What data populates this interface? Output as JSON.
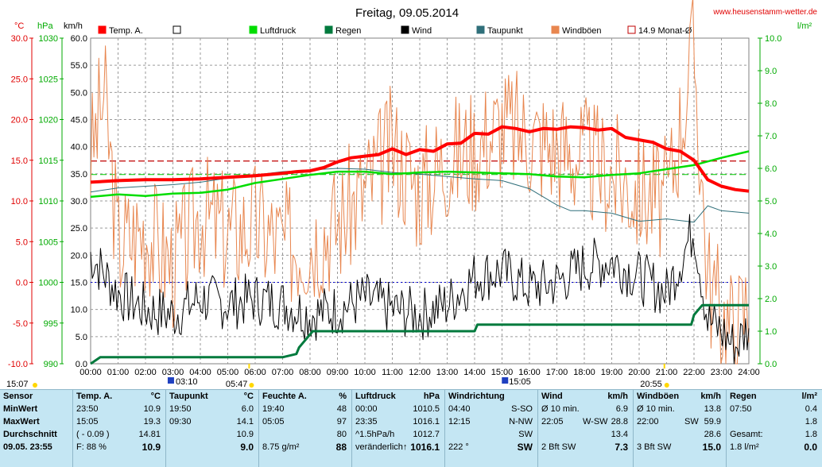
{
  "title": "Freitag, 09.05.2014",
  "site": "www.heusenstamm-wetter.de",
  "axis_units": {
    "temp": "°C",
    "pressure": "hPa",
    "wind": "km/h",
    "rain": "l/m²"
  },
  "colors": {
    "temp": "#ff0000",
    "pressure": "#00dd00",
    "rain": "#007a3d",
    "wind": "#000000",
    "dewpoint": "#2f6f7a",
    "gust": "#e8864f",
    "avg": "#c00000"
  },
  "legend": [
    {
      "label": "Temp. A.",
      "color": "#ff0000",
      "fill": true
    },
    {
      "label": "",
      "color": "#000000",
      "fill": false
    },
    {
      "label": "Luftdruck",
      "color": "#00dd00",
      "fill": true
    },
    {
      "label": "Regen",
      "color": "#007a3d",
      "fill": true
    },
    {
      "label": "Wind",
      "color": "#000000",
      "fill": true
    },
    {
      "label": "Taupunkt",
      "color": "#2f6f7a",
      "fill": true
    },
    {
      "label": "Windböen",
      "color": "#e8864f",
      "fill": true
    },
    {
      "label": "14.9 Monat-Ø",
      "color": "#c00000",
      "fill": false
    }
  ],
  "chart_data": {
    "type": "line",
    "x_ticks": [
      "00:00",
      "01:00",
      "02:00",
      "03:00",
      "04:00",
      "05:00",
      "06:00",
      "07:00",
      "08:00",
      "09:00",
      "10:00",
      "11:00",
      "12:00",
      "13:00",
      "14:00",
      "15:00",
      "16:00",
      "17:00",
      "18:00",
      "19:00",
      "20:00",
      "21:00",
      "22:00",
      "23:00",
      "24:00"
    ],
    "axes": {
      "temp": {
        "ticks": [
          "30.0",
          "25.0",
          "20.0",
          "15.0",
          "10.0",
          "5.0",
          "0.0",
          "-5.0",
          "-10.0"
        ],
        "range": [
          -10,
          30
        ]
      },
      "pressure": {
        "ticks": [
          "1030",
          "1025",
          "1020",
          "1015",
          "1010",
          "1005",
          "1000",
          "995",
          "990"
        ],
        "range": [
          990,
          1030
        ]
      },
      "wind": {
        "ticks": [
          "60.0",
          "55.0",
          "50.0",
          "45.0",
          "40.0",
          "35.0",
          "30.0",
          "25.0",
          "20.0",
          "15.0",
          "10.0",
          "5.0",
          "0.0"
        ],
        "range": [
          0,
          60
        ]
      },
      "rain": {
        "ticks": [
          "10.0",
          "9.0",
          "8.0",
          "7.0",
          "6.0",
          "5.0",
          "4.0",
          "3.0",
          "2.0",
          "1.0",
          "0.0"
        ],
        "range": [
          0,
          10
        ]
      }
    },
    "monthly_avg_temp": 14.9,
    "series": [
      {
        "name": "Temp. A.",
        "axis": "temp",
        "x": [
          0,
          1,
          2,
          3,
          4,
          5,
          6,
          7,
          7.5,
          8,
          8.5,
          9,
          9.5,
          10,
          10.5,
          11,
          11.5,
          12,
          12.5,
          13,
          13.5,
          14,
          14.5,
          15,
          15.5,
          16,
          16.5,
          17,
          17.5,
          18,
          18.5,
          19,
          19.5,
          20,
          20.5,
          21,
          21.5,
          22,
          22.5,
          23,
          23.5,
          24
        ],
        "y": [
          12.3,
          12.5,
          12.6,
          12.6,
          12.7,
          12.9,
          13.1,
          13.4,
          13.6,
          13.7,
          14.1,
          14.8,
          15.3,
          15.5,
          15.7,
          16.4,
          15.7,
          16.3,
          16.1,
          17.0,
          17.1,
          18.3,
          18.2,
          19.1,
          18.9,
          18.5,
          18.9,
          18.8,
          19.1,
          19.0,
          18.7,
          18.9,
          17.8,
          17.5,
          17.2,
          16.4,
          16.1,
          15.0,
          12.6,
          11.8,
          11.4,
          11.2
        ]
      },
      {
        "name": "Luftdruck",
        "axis": "pressure",
        "x": [
          0,
          1,
          2,
          3,
          4,
          5,
          6,
          7,
          8,
          9,
          10,
          11,
          12,
          13,
          14,
          15,
          16,
          17,
          18,
          19,
          20,
          21,
          22,
          23,
          24
        ],
        "y": [
          1010.5,
          1010.8,
          1010.6,
          1010.9,
          1011.0,
          1011.4,
          1012.2,
          1012.7,
          1013.2,
          1013.6,
          1013.6,
          1013.3,
          1013.5,
          1013.6,
          1013.5,
          1013.4,
          1013.3,
          1013.0,
          1012.9,
          1013.2,
          1013.4,
          1013.9,
          1014.4,
          1015.3,
          1016.1
        ]
      },
      {
        "name": "Taupunkt",
        "axis": "temp",
        "x": [
          0,
          1,
          2,
          3,
          4,
          5,
          6,
          7,
          8,
          9,
          10,
          11,
          12,
          13,
          14,
          15,
          16,
          17,
          17.5,
          18,
          19,
          20,
          21,
          22,
          22.5,
          23,
          24
        ],
        "y": [
          11.1,
          11.6,
          11.8,
          12.0,
          12.3,
          12.8,
          13.2,
          13.6,
          13.8,
          14.0,
          13.9,
          13.5,
          13.3,
          13.0,
          12.7,
          12.5,
          11.5,
          9.5,
          8.8,
          8.8,
          8.5,
          7.5,
          7.8,
          7.4,
          9.4,
          8.8,
          8.5
        ]
      },
      {
        "name": "Regen",
        "axis": "rain",
        "x": [
          0,
          0.35,
          1,
          2,
          3,
          4,
          5,
          6,
          7,
          7.5,
          7.6,
          7.8,
          8,
          8.1,
          9,
          10,
          11,
          12,
          13,
          14,
          14.1,
          15,
          16,
          17,
          18,
          19,
          20,
          21,
          21.9,
          22,
          22.3,
          23,
          24
        ],
        "y": [
          0,
          0.2,
          0.2,
          0.2,
          0.2,
          0.2,
          0.2,
          0.2,
          0.2,
          0.3,
          0.5,
          0.7,
          0.9,
          1.0,
          1.0,
          1.0,
          1.0,
          1.0,
          1.0,
          1.0,
          1.2,
          1.2,
          1.2,
          1.2,
          1.2,
          1.2,
          1.2,
          1.2,
          1.2,
          1.5,
          1.8,
          1.8,
          1.8
        ]
      },
      {
        "name": "Wind",
        "axis": "wind",
        "seed": 7,
        "x": [
          0,
          1,
          2,
          3,
          4,
          5,
          6,
          7,
          8,
          9,
          10,
          11,
          12,
          13,
          14,
          15,
          16,
          17,
          18,
          19,
          20,
          21,
          22,
          22.5,
          23,
          23.5,
          24
        ],
        "y": [
          20,
          13,
          10,
          9,
          12,
          11,
          12,
          11,
          9,
          10,
          12,
          10,
          9,
          11,
          16,
          17,
          14,
          15,
          18,
          19,
          16,
          13,
          25,
          8,
          6,
          3,
          7
        ]
      },
      {
        "name": "Windböen",
        "axis": "wind",
        "seed": 3,
        "x": [
          0,
          0.5,
          1,
          2,
          3,
          4,
          5,
          6,
          7,
          8,
          9,
          10,
          11,
          12,
          13,
          14,
          15,
          16,
          17,
          18,
          19,
          20,
          21,
          22,
          22.5,
          23,
          23.5,
          24
        ],
        "y": [
          38,
          50,
          22,
          25,
          18,
          28,
          24,
          26,
          22,
          23,
          26,
          32,
          40,
          32,
          38,
          40,
          44,
          42,
          40,
          38,
          35,
          32,
          30,
          58,
          16,
          9,
          6,
          12
        ]
      }
    ]
  },
  "time_marks": {
    "sunrise": "05:47",
    "sunset": "20:55",
    "time_a": "15:07",
    "time_b": "03:10",
    "time_c": "15:05"
  },
  "table": {
    "row_labels": [
      "Sensor",
      "MinWert",
      "MaxWert",
      "Durchschnitt",
      "09.05. 23:55"
    ],
    "temp": {
      "title": "Temp. A.",
      "unit": "°C",
      "rows": [
        [
          "23:50",
          "10.9"
        ],
        [
          "15:05",
          "19.3"
        ],
        [
          "( - 0.09 )",
          "14.81"
        ],
        [
          "F: 88 %",
          "10.9"
        ]
      ]
    },
    "dew": {
      "title": "Taupunkt",
      "unit": "°C",
      "rows": [
        [
          "19:50",
          "6.0"
        ],
        [
          "09:30",
          "14.1"
        ],
        [
          "",
          "10.9"
        ],
        [
          "",
          "9.0"
        ]
      ]
    },
    "hum": {
      "title": "Feuchte A.",
      "unit": "%",
      "rows": [
        [
          "19:40",
          "48"
        ],
        [
          "05:05",
          "97"
        ],
        [
          "",
          "80"
        ],
        [
          "8.75 g/m²",
          "88"
        ]
      ]
    },
    "press": {
      "title": "Luftdruck",
      "unit": "hPa",
      "rows": [
        [
          "00:00",
          "1010.5"
        ],
        [
          "23:35",
          "1016.1"
        ],
        [
          "^1.5hPa/h",
          "1012.7"
        ],
        [
          "veränderlich↑",
          "1016.1"
        ]
      ]
    },
    "dir": {
      "title": "Windrichtung",
      "rows": [
        [
          "04:40",
          "S-SO"
        ],
        [
          "12:15",
          "N-NW"
        ],
        [
          "",
          "SW"
        ],
        [
          "222 °",
          "SW"
        ]
      ]
    },
    "wind": {
      "title": "Wind",
      "unit": "km/h",
      "rows": [
        [
          "Ø 10 min.",
          "",
          "6.9"
        ],
        [
          "22:05",
          "W-SW",
          "28.8"
        ],
        [
          "",
          "",
          "13.4"
        ],
        [
          "2 Bft SW",
          "",
          "7.3"
        ]
      ]
    },
    "gust": {
      "title": "Windböen",
      "unit": "km/h",
      "rows": [
        [
          "Ø 10 min.",
          "",
          "13.8"
        ],
        [
          "22:00",
          "SW",
          "59.9"
        ],
        [
          "",
          "",
          "28.6"
        ],
        [
          "3 Bft SW",
          "",
          "15.0"
        ]
      ]
    },
    "rain": {
      "title": "Regen",
      "unit": "l/m²",
      "rows": [
        [
          "07:50",
          "0.4"
        ],
        [
          "",
          "1.8"
        ],
        [
          "Gesamt:",
          "1.8"
        ],
        [
          "1.8 l/m²",
          "0.0"
        ]
      ]
    }
  }
}
